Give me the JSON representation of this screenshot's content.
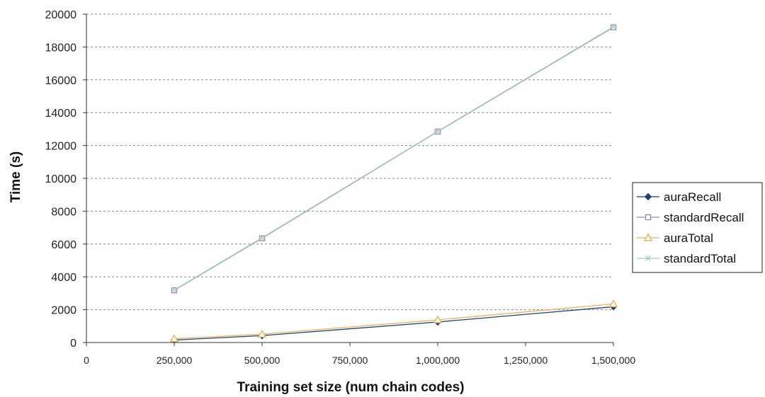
{
  "chart_data": {
    "type": "line",
    "title": "",
    "xlabel": "Training set size (num chain codes)",
    "ylabel": "Time (s)",
    "xlim": [
      0,
      1500000
    ],
    "ylim": [
      0,
      20000
    ],
    "x_ticks": [
      0,
      250000,
      500000,
      750000,
      1000000,
      1250000,
      1500000
    ],
    "x_tick_labels": [
      "0",
      "250,000",
      "500,000",
      "750,000",
      "1,000,000",
      "1,250,000",
      "1,500,000"
    ],
    "y_ticks": [
      0,
      2000,
      4000,
      6000,
      8000,
      10000,
      12000,
      14000,
      16000,
      18000,
      20000
    ],
    "y_tick_labels": [
      "0",
      "2000",
      "4000",
      "6000",
      "8000",
      "10000",
      "12000",
      "14000",
      "16000",
      "18000",
      "20000"
    ],
    "grid": "horizontal dashed",
    "legend_position": "right",
    "x": [
      250000,
      500000,
      1000000,
      1500000
    ],
    "series": [
      {
        "name": "auraRecall",
        "values": [
          150,
          420,
          1250,
          2180
        ],
        "color": "#1f3f7a",
        "marker": "diamond"
      },
      {
        "name": "standardRecall",
        "values": [
          3180,
          6350,
          12850,
          19200
        ],
        "color": "#9a86c0",
        "marker": "square"
      },
      {
        "name": "auraTotal",
        "values": [
          230,
          510,
          1380,
          2350
        ],
        "color": "#e8b35a",
        "marker": "triangle"
      },
      {
        "name": "standardTotal",
        "values": [
          3200,
          6380,
          12870,
          19230
        ],
        "color": "#9fd0b8",
        "marker": "x"
      }
    ]
  }
}
